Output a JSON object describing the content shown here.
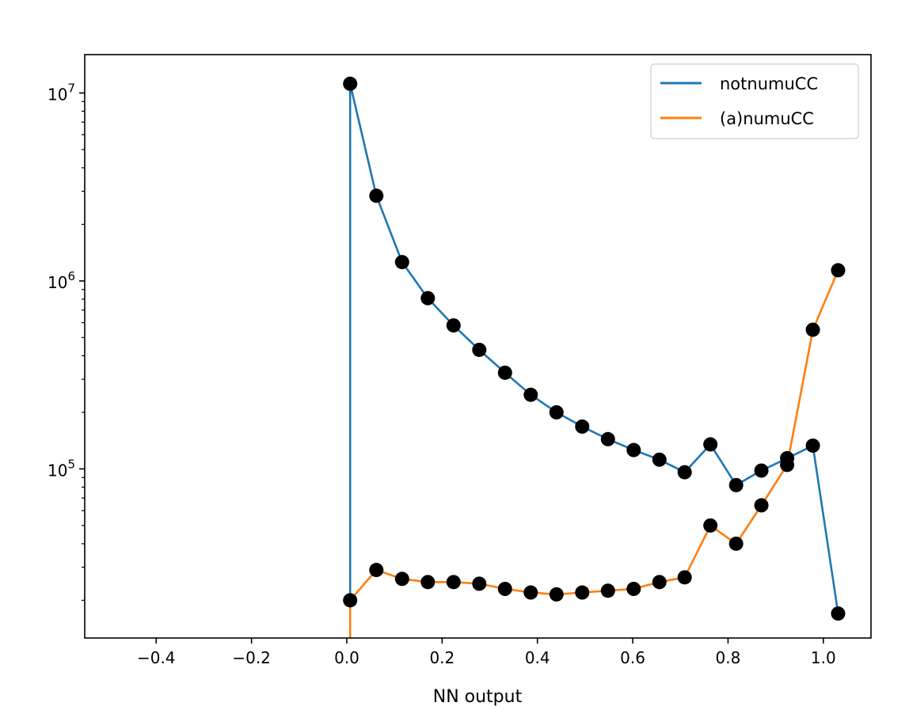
{
  "chart_data": {
    "type": "line",
    "title": "",
    "xlabel": "NN output",
    "ylabel": "",
    "xlim": [
      -0.55,
      1.1
    ],
    "ylim": [
      12600,
      16000000
    ],
    "yscale": "log",
    "grid": false,
    "legend_position": "top-right",
    "x_ticks": [
      -0.4,
      -0.2,
      0.0,
      0.2,
      0.4,
      0.6,
      0.8,
      1.0
    ],
    "x_tick_labels": [
      "−0.4",
      "−0.2",
      "0.0",
      "0.2",
      "0.4",
      "0.6",
      "0.8",
      "1.0"
    ],
    "y_ticks": [
      100000,
      1000000,
      10000000
    ],
    "y_tick_labels": [
      {
        "base": "10",
        "exp": "5"
      },
      {
        "base": "10",
        "exp": "6"
      },
      {
        "base": "10",
        "exp": "7"
      }
    ],
    "marker_color": "#000000",
    "series": [
      {
        "name": "notnumuCC",
        "color": "#1f77b4",
        "x": [
          0.007,
          0.007,
          0.062,
          0.116,
          0.17,
          0.224,
          0.278,
          0.332,
          0.386,
          0.44,
          0.494,
          0.548,
          0.602,
          0.656,
          0.709,
          0.763,
          0.817,
          0.87,
          0.924,
          0.978,
          1.031
        ],
        "y": [
          20000,
          11200000,
          2840000,
          1260000,
          810000,
          580000,
          430000,
          325000,
          248000,
          200000,
          168000,
          144000,
          126000,
          112000,
          96000,
          135000,
          82000,
          98000,
          114000,
          133000,
          17000
        ],
        "markers": [
          false,
          true,
          true,
          true,
          true,
          true,
          true,
          true,
          true,
          true,
          true,
          true,
          true,
          true,
          true,
          true,
          true,
          true,
          true,
          true,
          true
        ]
      },
      {
        "name": "(a)numuCC",
        "color": "#ff7f0e",
        "x": [
          0.007,
          0.007,
          0.062,
          0.116,
          0.17,
          0.224,
          0.278,
          0.332,
          0.386,
          0.44,
          0.494,
          0.548,
          0.602,
          0.656,
          0.709,
          0.763,
          0.817,
          0.87,
          0.924,
          0.978,
          1.031
        ],
        "y": [
          12000,
          20000,
          29000,
          26000,
          25000,
          25000,
          24500,
          23000,
          22000,
          21500,
          22000,
          22500,
          23000,
          25000,
          26500,
          50000,
          40000,
          64000,
          105000,
          550000,
          1140000
        ],
        "markers": [
          false,
          true,
          true,
          true,
          true,
          true,
          true,
          true,
          true,
          true,
          true,
          true,
          true,
          true,
          true,
          true,
          true,
          true,
          true,
          true,
          true
        ]
      }
    ]
  }
}
